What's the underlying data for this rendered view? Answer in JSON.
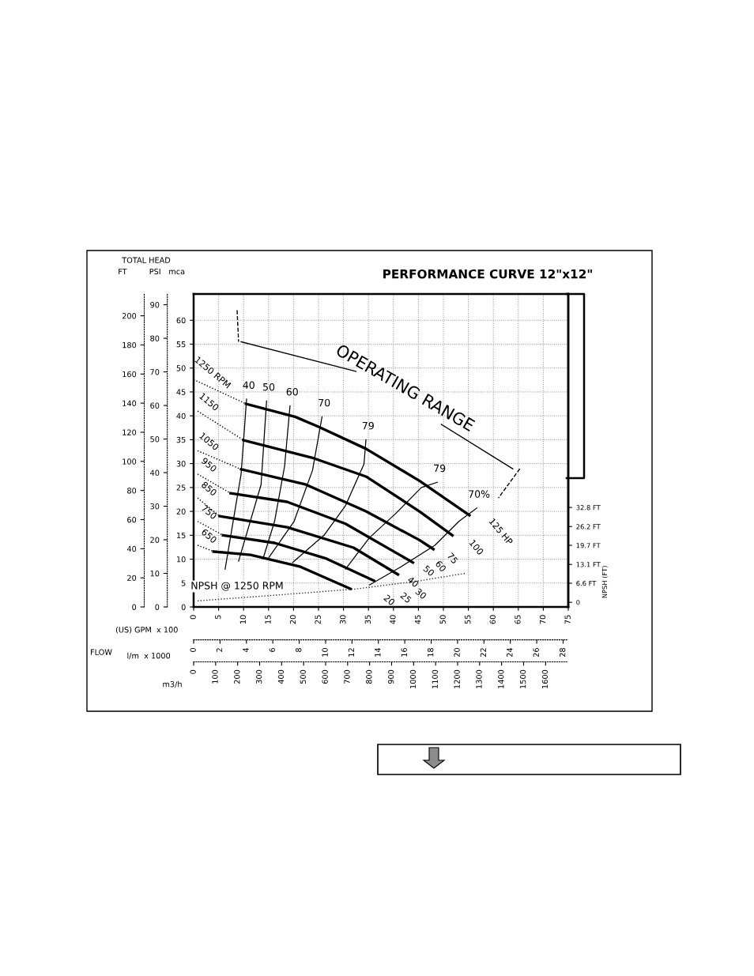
{
  "chart_data": [
    {
      "type": "line",
      "title": "PERFORMANCE CURVE 12\"x12\"",
      "xlabel": "(US) GPM  x 100",
      "ylabel": "mca",
      "y2label": "FT",
      "y3label": "PSI",
      "x2label": "l/m  x 1000",
      "xlim": [
        0,
        75
      ],
      "xticks": [
        0,
        5,
        10,
        15,
        20,
        25,
        30,
        35,
        40,
        45,
        50,
        55,
        60,
        65,
        70,
        75
      ],
      "ylim": [
        0,
        65.5
      ],
      "yticks": [
        0,
        5,
        10,
        15,
        20,
        25,
        30,
        35,
        40,
        45,
        50,
        55,
        60
      ],
      "y2lim": [
        0,
        215
      ],
      "y2ticks": [
        0,
        20,
        40,
        60,
        80,
        100,
        120,
        140,
        160,
        180,
        200
      ],
      "y3lim": [
        0,
        93.2
      ],
      "y3ticks": [
        0,
        10,
        20,
        30,
        40,
        50,
        60,
        70,
        80,
        90
      ],
      "x2lim": [
        0,
        28.39
      ],
      "x2ticks": [
        0,
        2,
        4,
        6,
        8,
        10,
        12,
        14,
        16,
        18,
        20,
        22,
        24,
        26,
        28
      ],
      "grid": true,
      "marker": "none",
      "series": [
        {
          "color": "#000000",
          "line_style": "solid",
          "x": [
            10.5,
            20.3,
            25.0,
            34.5,
            45.2,
            55.2
          ],
          "values": [
            42.5,
            39.8,
            37.7,
            33.1,
            26.4,
            19.2
          ]
        },
        {
          "color": "#000000",
          "line_style": "solid",
          "x": [
            10.0,
            24.1,
            34.5,
            45.2,
            51.8
          ],
          "values": [
            34.9,
            31.1,
            27.3,
            20.0,
            15.0
          ]
        },
        {
          "color": "#000000",
          "line_style": "solid",
          "x": [
            9.5,
            22.5,
            34.5,
            45.2,
            48.0
          ],
          "values": [
            28.8,
            25.6,
            20.0,
            14.0,
            12.1
          ]
        },
        {
          "color": "#000000",
          "line_style": "solid",
          "x": [
            7.4,
            18.7,
            30.4,
            43.9
          ],
          "values": [
            23.8,
            22.0,
            17.4,
            9.3
          ]
        },
        {
          "color": "#000000",
          "line_style": "solid",
          "x": [
            5.2,
            18.7,
            32.0,
            40.9
          ],
          "values": [
            19.0,
            16.7,
            12.4,
            6.8
          ]
        },
        {
          "color": "#000000",
          "line_style": "solid",
          "x": [
            5.9,
            16.2,
            26.6,
            36.1
          ],
          "values": [
            15.0,
            13.4,
            10.1,
            5.5
          ]
        },
        {
          "color": "#000000",
          "line_style": "solid",
          "x": [
            4.0,
            11.4,
            21.4,
            31.4
          ],
          "values": [
            11.6,
            10.9,
            8.4,
            3.8
          ]
        },
        {
          "name": "1250 RPM",
          "color": "#000000",
          "line_style": "dotted",
          "x": [
            0,
            10.5
          ],
          "values": [
            47.6,
            42.5
          ]
        },
        {
          "name": "1150",
          "color": "#000000",
          "line_style": "dotted",
          "x": [
            0.8,
            10.0
          ],
          "values": [
            41.0,
            34.9
          ]
        },
        {
          "name": "1050",
          "color": "#000000",
          "line_style": "dotted",
          "x": [
            0.8,
            9.5
          ],
          "values": [
            32.7,
            28.8
          ]
        },
        {
          "name": "950",
          "color": "#000000",
          "line_style": "dotted",
          "x": [
            0.8,
            7.4
          ],
          "values": [
            27.8,
            23.8
          ]
        },
        {
          "name": "850",
          "color": "#000000",
          "line_style": "dotted",
          "x": [
            0.8,
            5.2
          ],
          "values": [
            22.8,
            19.0
          ]
        },
        {
          "name": "750",
          "color": "#000000",
          "line_style": "dotted",
          "x": [
            0.8,
            5.9
          ],
          "values": [
            17.9,
            15.0
          ]
        },
        {
          "name": "650",
          "color": "#000000",
          "line_style": "dotted",
          "x": [
            0.8,
            4.0
          ],
          "values": [
            12.9,
            11.6
          ]
        },
        {
          "name": "40",
          "color": "#000000",
          "line_style": "solid",
          "x": [
            10.6,
            9.5,
            6.3
          ],
          "values": [
            43.5,
            27.8,
            7.9
          ]
        },
        {
          "name": "50",
          "color": "#000000",
          "line_style": "solid",
          "x": [
            14.6,
            13.5,
            9.0
          ],
          "values": [
            43.1,
            25.6,
            9.6
          ]
        },
        {
          "name": "60",
          "color": "#000000",
          "line_style": "solid",
          "x": [
            19.3,
            18.2,
            16.2,
            13.9
          ],
          "values": [
            42.1,
            29.4,
            17.9,
            10.1
          ]
        },
        {
          "name": "70",
          "color": "#000000",
          "line_style": "solid",
          "x": [
            25.7,
            23.8,
            20.1,
            15.1
          ],
          "values": [
            39.8,
            28.6,
            17.9,
            10.4
          ]
        },
        {
          "name": "79",
          "color": "#000000",
          "line_style": "solid",
          "x": [
            34.5,
            34.1,
            30.4,
            26.1,
            19.8
          ],
          "values": [
            35.0,
            29.9,
            21.2,
            15.0,
            9.3
          ]
        },
        {
          "name": "79",
          "color": "#000000",
          "line_style": "solid",
          "x": [
            48.8,
            45.6,
            40.4,
            35.2,
            30.4
          ],
          "values": [
            26.1,
            25.0,
            19.5,
            14.5,
            7.9
          ]
        },
        {
          "name": "70%",
          "color": "#000000",
          "line_style": "solid",
          "x": [
            56.7,
            53.1,
            48.3,
            41.5,
            35.2
          ],
          "values": [
            20.7,
            17.9,
            12.9,
            8.4,
            4.6
          ]
        },
        {
          "color": "#000000",
          "line_style": "solid",
          "x": [
            9.5,
            32.5
          ],
          "values": [
            55.5,
            49.3
          ]
        },
        {
          "color": "#000000",
          "line_style": "solid",
          "x": [
            49.6,
            63.9
          ],
          "values": [
            38.2,
            28.9
          ]
        },
        {
          "color": "#000000",
          "line_style": "dashed",
          "x": [
            8.7,
            9.0
          ],
          "values": [
            62.1,
            55.5
          ]
        },
        {
          "color": "#000000",
          "line_style": "dashed",
          "x": [
            65.3,
            61.0
          ],
          "values": [
            28.9,
            22.8
          ]
        }
      ],
      "annotations": [
        "OPERATING RANGE",
        "125 HP",
        "100",
        "75",
        "60",
        "50",
        "40",
        "30",
        "25",
        "20",
        "TOTAL HEAD",
        "FLOW"
      ]
    },
    {
      "type": "line",
      "xlabel": "m3/h",
      "ylabel": "NPSH (FT)",
      "xlim": [
        0,
        1703
      ],
      "xticks": [
        0,
        100,
        200,
        300,
        400,
        500,
        600,
        700,
        800,
        900,
        1000,
        1100,
        1200,
        1300,
        1400,
        1500,
        1600
      ],
      "ylim": [
        -1.6,
        106.6
      ],
      "yticks": [
        0,
        {
          "value": 6.6,
          "label": "6.6 FT"
        },
        {
          "value": 13.1,
          "label": "13.1 FT"
        },
        {
          "value": 19.7,
          "label": "19.7 FT"
        },
        {
          "value": 26.2,
          "label": "26.2 FT"
        },
        {
          "value": 32.8,
          "label": "32.8 FT"
        }
      ],
      "grid": false,
      "marker": "none",
      "series": [
        {
          "color": "#333333",
          "line_style": "dotted",
          "x": [
            18,
            377,
            737,
            1024,
            1240
          ],
          "values": [
            0.5,
            2.5,
            4.6,
            7.4,
            10.1
          ]
        }
      ],
      "annotations": [
        "NPSH @ 1250 RPM"
      ]
    }
  ]
}
